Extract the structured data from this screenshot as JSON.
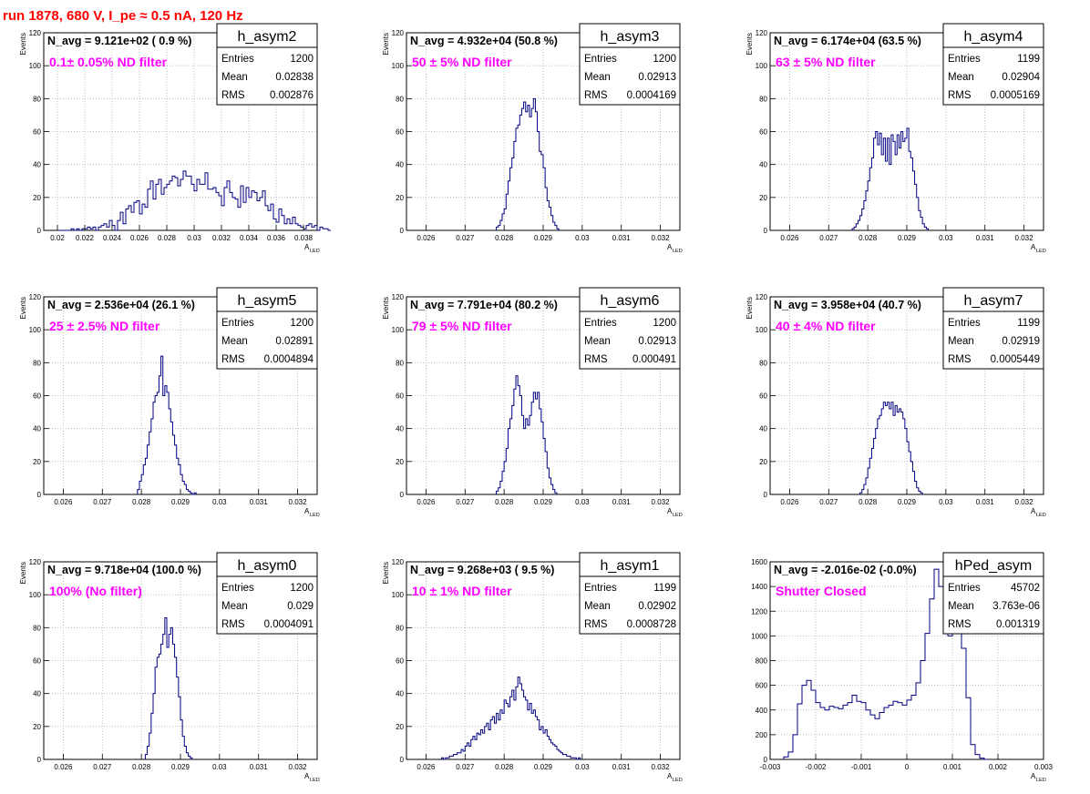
{
  "page_title": "run 1878,   680 V, I_pe ≈ 0.5 nA, 120 Hz",
  "colors": {
    "histogram": "#000080",
    "filter_label": "#ff00ff",
    "title": "#ff0000"
  },
  "chart_data": [
    {
      "type": "bar",
      "name": "h_asym2",
      "ylabel": "Events",
      "xlabel": "A",
      "xlabel_sub": "LED",
      "xlim": [
        0.019,
        0.039
      ],
      "ylim": [
        0,
        120
      ],
      "xticks": [
        0.02,
        0.022,
        0.024,
        0.026,
        0.028,
        0.03,
        0.032,
        0.034,
        0.036,
        0.038
      ],
      "xtick_labels": [
        "0.02",
        "0.022",
        "0.024",
        "0.026",
        "0.028",
        "0.03",
        "0.032",
        "0.034",
        "0.036",
        "0.038"
      ],
      "yticks": [
        0,
        20,
        40,
        60,
        80,
        100,
        120
      ],
      "ytick_labels": [
        "0",
        "20",
        "40",
        "60",
        "80",
        "100",
        "120"
      ],
      "navg": "N_avg = 9.121e+02 ( 0.9 %)",
      "filter": "0.1± 0.05% ND filter",
      "stats": [
        [
          "Entries",
          "1200"
        ],
        [
          "Mean",
          "0.02838"
        ],
        [
          "RMS",
          "0.002876"
        ]
      ],
      "bin_start": 0.02,
      "bin_width": 0.0002,
      "values": [
        0,
        0,
        0,
        0,
        0,
        1,
        0,
        1,
        0,
        1,
        1,
        2,
        1,
        2,
        0,
        2,
        3,
        4,
        2,
        6,
        3,
        0,
        6,
        11,
        4,
        13,
        15,
        11,
        17,
        18,
        10,
        16,
        14,
        25,
        30,
        19,
        28,
        31,
        22,
        26,
        28,
        30,
        33,
        32,
        27,
        31,
        36,
        33,
        33,
        28,
        24,
        31,
        28,
        28,
        35,
        25,
        25,
        26,
        23,
        21,
        15,
        26,
        30,
        23,
        20,
        19,
        14,
        27,
        17,
        26,
        20,
        24,
        23,
        18,
        20,
        24,
        15,
        12,
        16,
        7,
        5,
        13,
        9,
        4,
        7,
        4,
        8,
        4,
        3,
        2,
        1,
        3,
        4,
        2,
        3,
        0,
        2,
        1,
        1,
        0
      ]
    },
    {
      "type": "bar",
      "name": "h_asym3",
      "ylabel": "Events",
      "xlabel": "A",
      "xlabel_sub": "LED",
      "xlim": [
        0.0255,
        0.0325
      ],
      "ylim": [
        0,
        120
      ],
      "xticks": [
        0.026,
        0.027,
        0.028,
        0.029,
        0.03,
        0.031,
        0.032
      ],
      "xtick_labels": [
        "0.026",
        "0.027",
        "0.028",
        "0.029",
        "0.03",
        "0.031",
        "0.032"
      ],
      "yticks": [
        0,
        20,
        40,
        60,
        80,
        100,
        120
      ],
      "ytick_labels": [
        "0",
        "20",
        "40",
        "60",
        "80",
        "100",
        "120"
      ],
      "navg": "N_avg = 4.932e+04 (50.8 %)",
      "filter": "50 ± 5% ND filter",
      "stats": [
        [
          "Entries",
          "1200"
        ],
        [
          "Mean",
          "0.02913"
        ],
        [
          "RMS",
          "0.0004169"
        ]
      ],
      "bin_start": 0.0278,
      "bin_width": 5e-05,
      "values": [
        2,
        3,
        6,
        10,
        13,
        22,
        30,
        38,
        44,
        54,
        62,
        64,
        70,
        74,
        78,
        72,
        76,
        69,
        74,
        80,
        72,
        60,
        48,
        46,
        38,
        26,
        18,
        14,
        9,
        5,
        3,
        1
      ]
    },
    {
      "type": "bar",
      "name": "h_asym4",
      "ylabel": "Events",
      "xlabel": "A",
      "xlabel_sub": "LED",
      "xlim": [
        0.0255,
        0.0325
      ],
      "ylim": [
        0,
        120
      ],
      "xticks": [
        0.026,
        0.027,
        0.028,
        0.029,
        0.03,
        0.031,
        0.032
      ],
      "xtick_labels": [
        "0.026",
        "0.027",
        "0.028",
        "0.029",
        "0.03",
        "0.031",
        "0.032"
      ],
      "yticks": [
        0,
        20,
        40,
        60,
        80,
        100,
        120
      ],
      "ytick_labels": [
        "0",
        "20",
        "40",
        "60",
        "80",
        "100",
        "120"
      ],
      "navg": "N_avg = 6.174e+04 (63.5 %)",
      "filter": "63 ± 5% ND filter",
      "stats": [
        [
          "Entries",
          "1199"
        ],
        [
          "Mean",
          "0.02904"
        ],
        [
          "RMS",
          "0.0005169"
        ]
      ],
      "bin_start": 0.0276,
      "bin_width": 5e-05,
      "values": [
        1,
        2,
        4,
        6,
        9,
        13,
        18,
        24,
        30,
        38,
        44,
        56,
        60,
        52,
        59,
        46,
        56,
        42,
        56,
        40,
        58,
        54,
        46,
        58,
        50,
        60,
        54,
        56,
        62,
        48,
        44,
        36,
        28,
        20,
        12,
        8,
        4,
        2,
        1
      ]
    },
    {
      "type": "bar",
      "name": "h_asym5",
      "ylabel": "Events",
      "xlabel": "A",
      "xlabel_sub": "LED",
      "xlim": [
        0.0255,
        0.0325
      ],
      "ylim": [
        0,
        120
      ],
      "xticks": [
        0.026,
        0.027,
        0.028,
        0.029,
        0.03,
        0.031,
        0.032
      ],
      "xtick_labels": [
        "0.026",
        "0.027",
        "0.028",
        "0.029",
        "0.03",
        "0.031",
        "0.032"
      ],
      "yticks": [
        0,
        20,
        40,
        60,
        80,
        100,
        120
      ],
      "ytick_labels": [
        "0",
        "20",
        "40",
        "60",
        "80",
        "100",
        "120"
      ],
      "navg": "N_avg = 2.536e+04 (26.1 %)",
      "filter": "25 ± 2.5% ND filter",
      "stats": [
        [
          "Entries",
          "1200"
        ],
        [
          "Mean",
          "0.02891"
        ],
        [
          "RMS",
          "0.0004894"
        ]
      ],
      "bin_start": 0.0279,
      "bin_width": 5e-05,
      "values": [
        3,
        8,
        12,
        18,
        22,
        30,
        38,
        46,
        56,
        60,
        62,
        72,
        84,
        60,
        66,
        62,
        52,
        44,
        36,
        30,
        22,
        18,
        12,
        8,
        6,
        3,
        2,
        1,
        0,
        1
      ]
    },
    {
      "type": "bar",
      "name": "h_asym6",
      "ylabel": "Events",
      "xlabel": "A",
      "xlabel_sub": "LED",
      "xlim": [
        0.0255,
        0.0325
      ],
      "ylim": [
        0,
        120
      ],
      "xticks": [
        0.026,
        0.027,
        0.028,
        0.029,
        0.03,
        0.031,
        0.032
      ],
      "xtick_labels": [
        "0.026",
        "0.027",
        "0.028",
        "0.029",
        "0.03",
        "0.031",
        "0.032"
      ],
      "yticks": [
        0,
        20,
        40,
        60,
        80,
        100,
        120
      ],
      "ytick_labels": [
        "0",
        "20",
        "40",
        "60",
        "80",
        "100",
        "120"
      ],
      "navg": "N_avg = 7.791e+04 (80.2 %)",
      "filter": "79 ± 5% ND filter",
      "stats": [
        [
          "Entries",
          "1200"
        ],
        [
          "Mean",
          "0.02913"
        ],
        [
          "RMS",
          "0.000491"
        ]
      ],
      "bin_start": 0.0278,
      "bin_width": 5e-05,
      "values": [
        2,
        4,
        8,
        14,
        20,
        28,
        40,
        46,
        54,
        64,
        72,
        66,
        60,
        48,
        40,
        46,
        42,
        48,
        56,
        62,
        58,
        62,
        52,
        44,
        34,
        26,
        16,
        10,
        6,
        3,
        1
      ]
    },
    {
      "type": "bar",
      "name": "h_asym7",
      "ylabel": "Events",
      "xlabel": "A",
      "xlabel_sub": "LED",
      "xlim": [
        0.0255,
        0.0325
      ],
      "ylim": [
        0,
        120
      ],
      "xticks": [
        0.026,
        0.027,
        0.028,
        0.029,
        0.03,
        0.031,
        0.032
      ],
      "xtick_labels": [
        "0.026",
        "0.027",
        "0.028",
        "0.029",
        "0.03",
        "0.031",
        "0.032"
      ],
      "yticks": [
        0,
        20,
        40,
        60,
        80,
        100,
        120
      ],
      "ytick_labels": [
        "0",
        "20",
        "40",
        "60",
        "80",
        "100",
        "120"
      ],
      "navg": "N_avg = 3.958e+04 (40.7 %)",
      "filter": "40 ± 4% ND filter",
      "stats": [
        [
          "Entries",
          "1199"
        ],
        [
          "Mean",
          "0.02919"
        ],
        [
          "RMS",
          "0.0005449"
        ]
      ],
      "bin_start": 0.0278,
      "bin_width": 5e-05,
      "values": [
        1,
        3,
        6,
        10,
        16,
        22,
        28,
        34,
        40,
        46,
        48,
        52,
        56,
        54,
        56,
        52,
        56,
        48,
        54,
        50,
        52,
        50,
        46,
        40,
        32,
        26,
        20,
        14,
        8,
        4,
        2,
        1
      ]
    },
    {
      "type": "bar",
      "name": "h_asym0",
      "ylabel": "Events",
      "xlabel": "A",
      "xlabel_sub": "LED",
      "xlim": [
        0.0255,
        0.0325
      ],
      "ylim": [
        0,
        120
      ],
      "xticks": [
        0.026,
        0.027,
        0.028,
        0.029,
        0.03,
        0.031,
        0.032
      ],
      "xtick_labels": [
        "0.026",
        "0.027",
        "0.028",
        "0.029",
        "0.03",
        "0.031",
        "0.032"
      ],
      "yticks": [
        0,
        20,
        40,
        60,
        80,
        100,
        120
      ],
      "ytick_labels": [
        "0",
        "20",
        "40",
        "60",
        "80",
        "100",
        "120"
      ],
      "navg": "N_avg = 9.718e+04 (100.0 %)",
      "filter": "100% (No filter)",
      "stats": [
        [
          "Entries",
          "1200"
        ],
        [
          "Mean",
          "0.029"
        ],
        [
          "RMS",
          "0.0004091"
        ]
      ],
      "bin_start": 0.0281,
      "bin_width": 5e-05,
      "values": [
        3,
        8,
        16,
        28,
        40,
        56,
        62,
        64,
        70,
        76,
        86,
        68,
        76,
        80,
        70,
        62,
        50,
        38,
        24,
        14,
        8,
        4,
        2,
        1
      ]
    },
    {
      "type": "bar",
      "name": "h_asym1",
      "ylabel": "Events",
      "xlabel": "A",
      "xlabel_sub": "LED",
      "xlim": [
        0.0255,
        0.0325
      ],
      "ylim": [
        0,
        120
      ],
      "xticks": [
        0.026,
        0.027,
        0.028,
        0.029,
        0.03,
        0.031,
        0.032
      ],
      "xtick_labels": [
        "0.026",
        "0.027",
        "0.028",
        "0.029",
        "0.03",
        "0.031",
        "0.032"
      ],
      "yticks": [
        0,
        20,
        40,
        60,
        80,
        100,
        120
      ],
      "ytick_labels": [
        "0",
        "20",
        "40",
        "60",
        "80",
        "100",
        "120"
      ],
      "navg": "N_avg = 9.268e+03 ( 9.5 %)",
      "filter": "10 ± 1% ND filter",
      "stats": [
        [
          "Entries",
          "1199"
        ],
        [
          "Mean",
          "0.02902"
        ],
        [
          "RMS",
          "0.0008728"
        ]
      ],
      "bin_start": 0.0264,
      "bin_width": 5e-05,
      "values": [
        1,
        0,
        1,
        1,
        2,
        2,
        3,
        3,
        4,
        4,
        6,
        5,
        8,
        10,
        8,
        12,
        14,
        12,
        16,
        15,
        18,
        16,
        20,
        22,
        18,
        24,
        26,
        22,
        28,
        24,
        30,
        28,
        36,
        34,
        32,
        38,
        42,
        36,
        44,
        50,
        46,
        42,
        38,
        36,
        30,
        34,
        28,
        30,
        26,
        24,
        18,
        20,
        16,
        18,
        14,
        12,
        10,
        9,
        8,
        6,
        5,
        4,
        3,
        3,
        2,
        2,
        1,
        1,
        1,
        0,
        1
      ]
    },
    {
      "type": "bar",
      "name": "hPed_asym",
      "ylabel": "",
      "xlabel": "A",
      "xlabel_sub": "LED",
      "xlim": [
        -0.003,
        0.003
      ],
      "ylim": [
        0,
        1600
      ],
      "xticks": [
        -0.003,
        -0.002,
        -0.001,
        0,
        0.001,
        0.002,
        0.003
      ],
      "xtick_labels": [
        "-0.003",
        "-0.002",
        "-0.001",
        "0",
        "0.001",
        "0.002",
        "0.003"
      ],
      "yticks": [
        0,
        200,
        400,
        600,
        800,
        1000,
        1200,
        1400,
        1600
      ],
      "ytick_labels": [
        "0",
        "200",
        "400",
        "600",
        "800",
        "1000",
        "1200",
        "1400",
        "1600"
      ],
      "navg": "N_avg = -2.016e-02 (-0.0%)",
      "filter": "Shutter Closed",
      "stats": [
        [
          "Entries",
          "45702"
        ],
        [
          "Mean",
          "3.763e-06"
        ],
        [
          "RMS",
          "0.001319"
        ]
      ],
      "bin_start": -0.0027,
      "bin_width": 0.0001,
      "values": [
        20,
        60,
        200,
        450,
        600,
        640,
        560,
        460,
        420,
        400,
        430,
        420,
        410,
        440,
        460,
        520,
        470,
        460,
        400,
        360,
        330,
        380,
        420,
        440,
        470,
        460,
        440,
        480,
        520,
        620,
        800,
        1020,
        1300,
        1540,
        1400,
        1100,
        1000,
        1060,
        1200,
        900,
        500,
        120,
        40,
        10,
        0
      ]
    }
  ]
}
